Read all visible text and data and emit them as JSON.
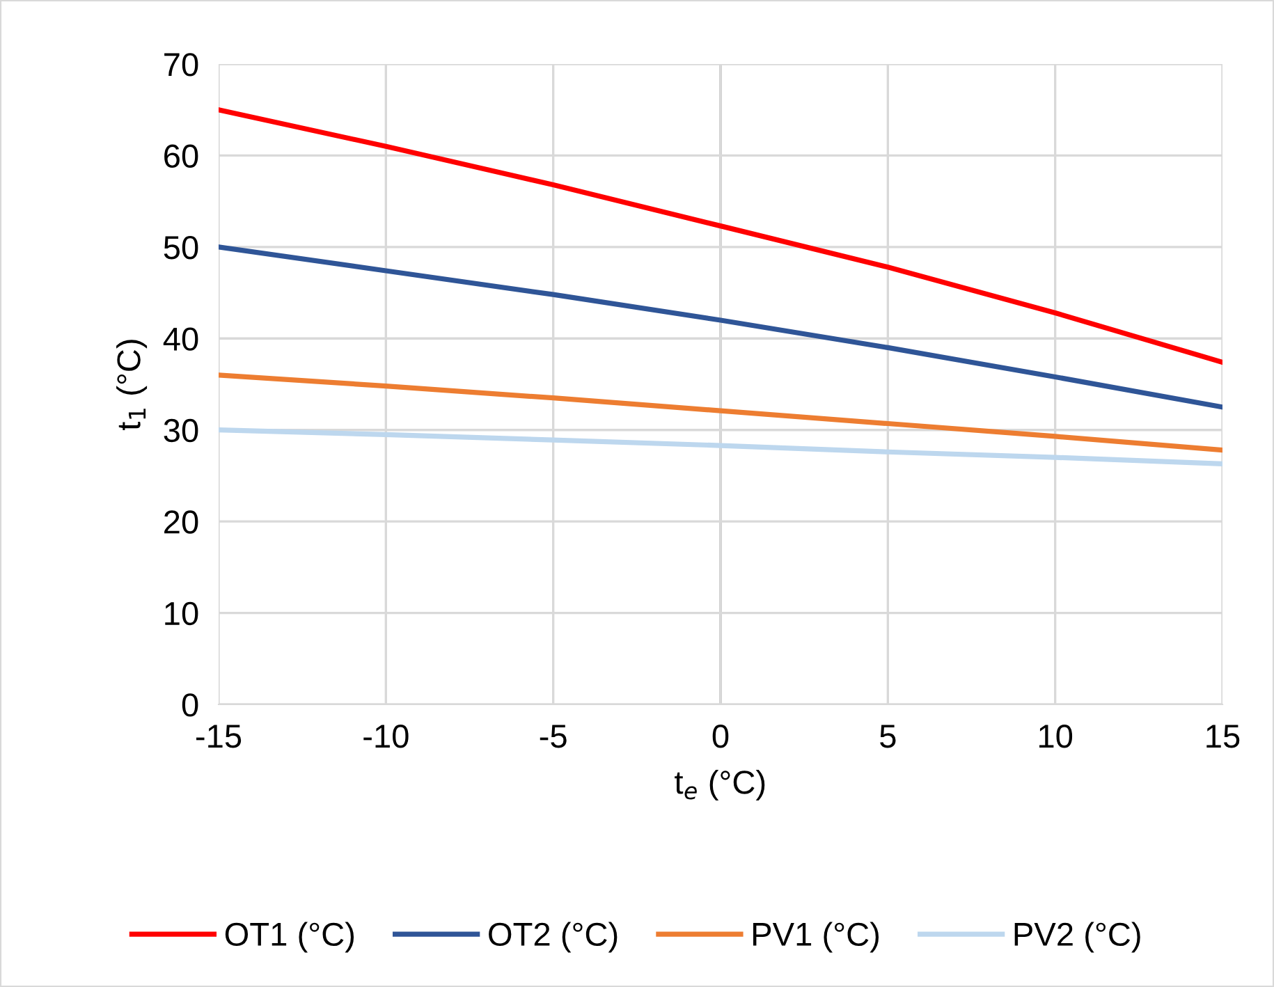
{
  "chart_data": {
    "type": "line",
    "xlabel": "t$_{e}$ (°C)",
    "ylabel": "t$_{1}$ (°C)",
    "x": [
      -15,
      -10,
      -5,
      0,
      5,
      10,
      15
    ],
    "series": [
      {
        "name": "OT1 (°C)",
        "color": "#ff0000",
        "values": [
          65,
          61.0,
          56.8,
          52.3,
          47.8,
          42.8,
          37.4
        ]
      },
      {
        "name": "OT2 (°C)",
        "color": "#2f5597",
        "values": [
          50,
          47.4,
          44.8,
          42,
          39.0,
          35.8,
          32.5
        ]
      },
      {
        "name": "PV1 (°C)",
        "color": "#ed7d31",
        "values": [
          36,
          34.8,
          33.5,
          32.1,
          30.7,
          29.3,
          27.8
        ]
      },
      {
        "name": "PV2 (°C)",
        "color": "#bdd7ee",
        "values": [
          30,
          29.5,
          28.9,
          28.3,
          27.6,
          27.0,
          26.3
        ]
      }
    ],
    "xlim": [
      -15,
      15
    ],
    "xticks": [
      -15,
      -10,
      -5,
      0,
      5,
      10,
      15
    ],
    "ylim": [
      0,
      70
    ],
    "yticks": [
      0,
      10,
      20,
      30,
      40,
      50,
      60,
      70
    ],
    "grid": true,
    "legend": "bottom",
    "marker": "none",
    "line_style": "solid"
  }
}
